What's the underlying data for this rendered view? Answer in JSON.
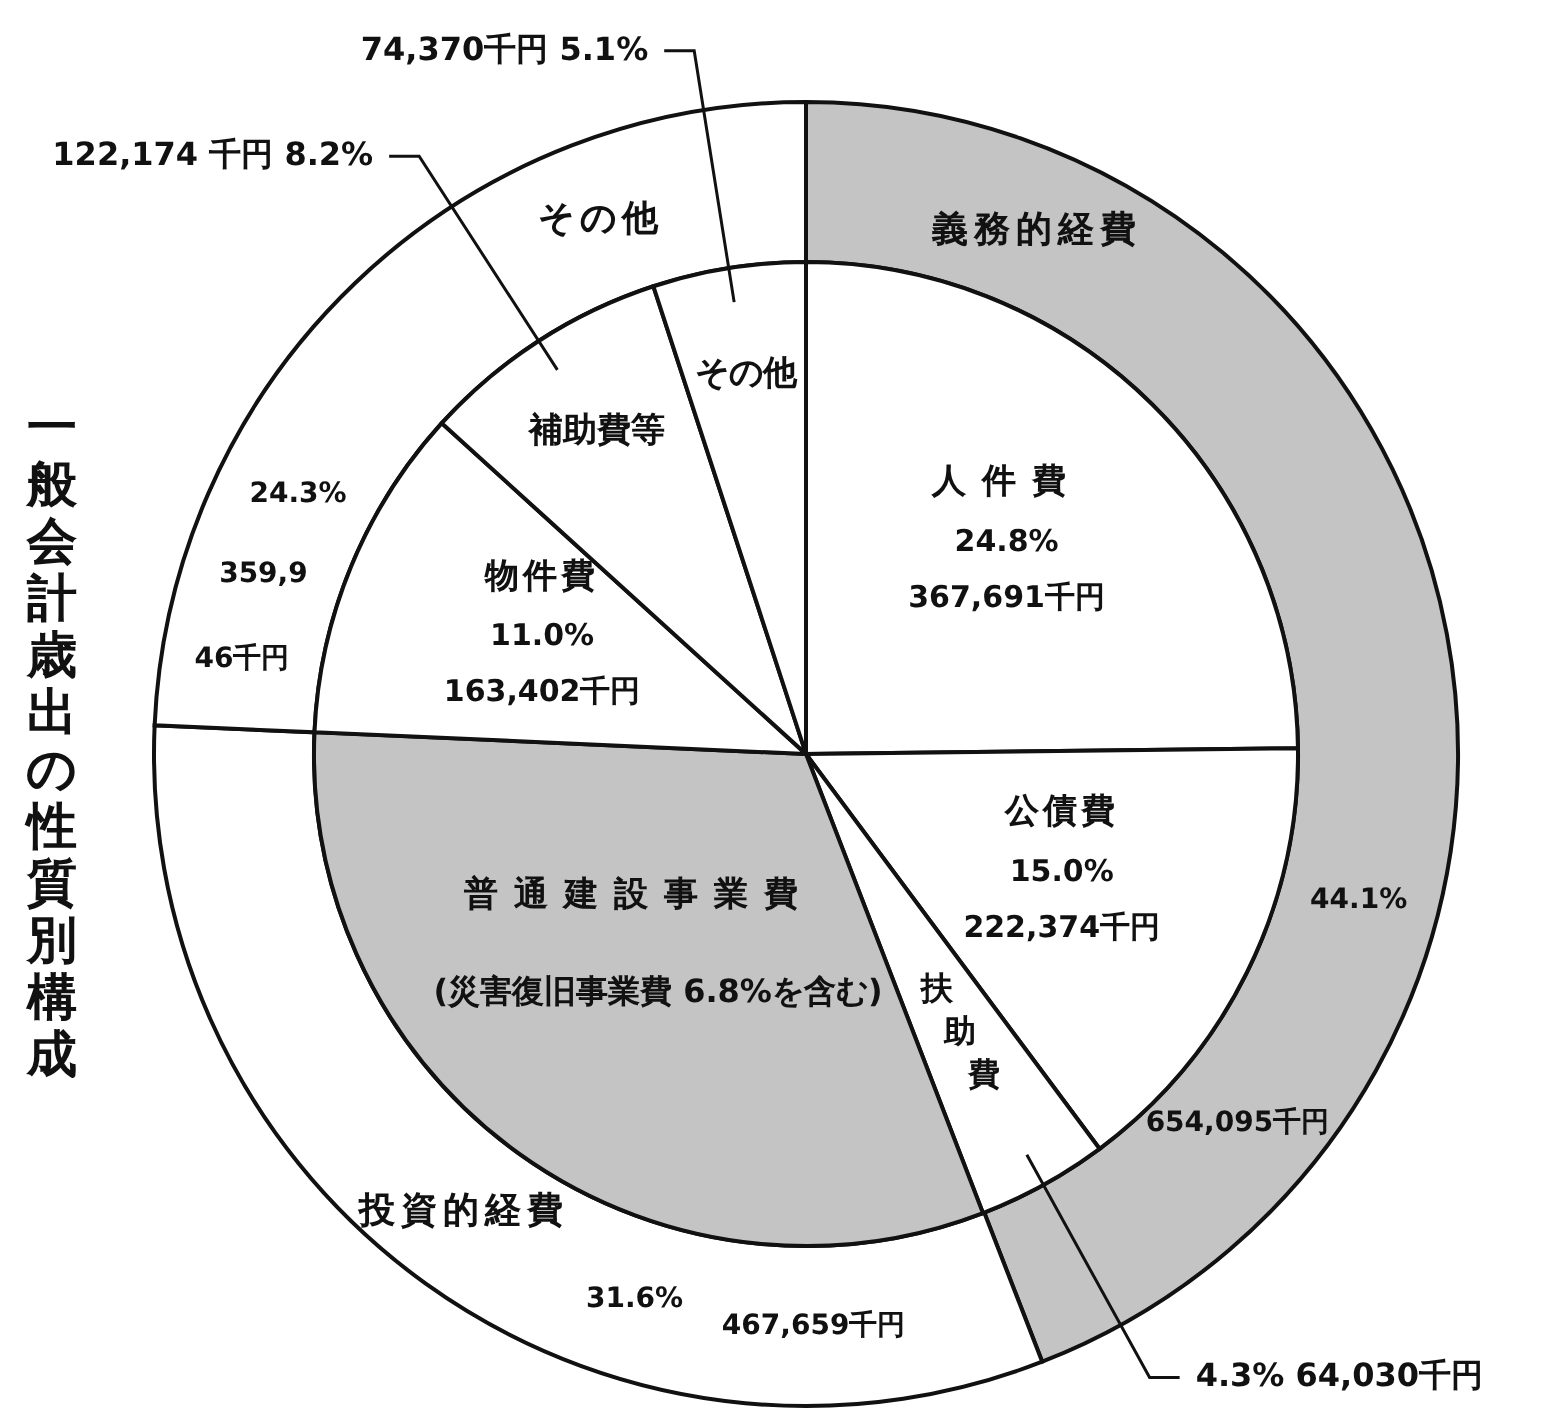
{
  "chart_data": [
    {
      "type": "donut",
      "title": "一般会計歳出の性質別構成",
      "categories": [
        "義務的経費",
        "投資的経費",
        "その他"
      ],
      "values": [
        44.1,
        31.6,
        24.3
      ],
      "colors": [
        "#c4c4c4",
        "#ffffff",
        "#ffffff"
      ],
      "value_labels": [
        "44.1%\n654,095千円",
        "31.6%\n467,659千円",
        "24.3%\n359,9\n46千円"
      ]
    },
    {
      "type": "pie",
      "categories": [
        "人件費",
        "公債費",
        "扶助費",
        "普通建設事業費",
        "物件費",
        "補助費等",
        "その他"
      ],
      "values": [
        367691,
        222374,
        64030,
        467659,
        163402,
        122174,
        74370
      ],
      "colors": [
        "#ffffff",
        "#ffffff",
        "#ffffff",
        "#c4c4c4",
        "#ffffff",
        "#ffffff",
        "#ffffff"
      ],
      "value_labels": [
        "24.8%\n367,691千円",
        "15.0%\n222,374千円",
        "4.3%  64,030千円",
        null,
        "11.0%\n163,402千円",
        "122,174 千円 8.2%",
        "74,370千円 5.1%"
      ],
      "annotations": [
        "(災害復旧事業費 6.8%を含む)"
      ]
    }
  ]
}
